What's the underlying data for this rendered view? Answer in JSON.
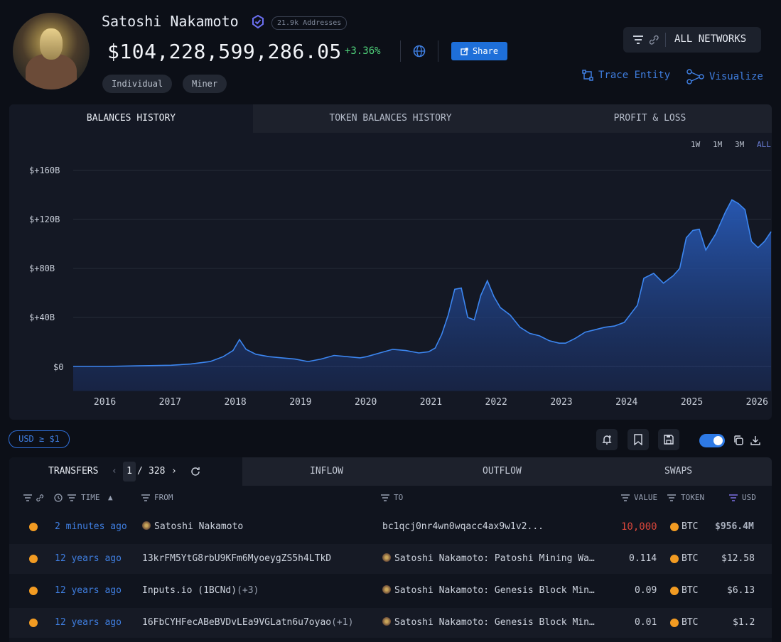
{
  "profile": {
    "name": "Satoshi Nakamoto",
    "addresses_badge": "21.9k Addresses",
    "balance": "$104,228,599,286.05",
    "change": "+3.36%",
    "share_label": "Share",
    "tags": [
      "Individual",
      "Miner"
    ]
  },
  "toolbar": {
    "networks_label": "ALL NETWORKS",
    "trace_label": "Trace Entity",
    "visualize_label": "Visualize"
  },
  "chart_tabs": [
    "BALANCES HISTORY",
    "TOKEN BALANCES HISTORY",
    "PROFIT & LOSS"
  ],
  "ranges": [
    "1W",
    "1M",
    "3M",
    "ALL"
  ],
  "colors": {
    "accent": "#1e6fd9",
    "positive": "#4fd17a",
    "negative": "#d9463b",
    "btc": "#f29b22",
    "area": "#2a62c8"
  },
  "chart_data": {
    "type": "area",
    "y_ticks": [
      "$+160B",
      "$+120B",
      "$+80B",
      "$+40B",
      "$0"
    ],
    "x_ticks": [
      "2016",
      "2017",
      "2018",
      "2019",
      "2020",
      "2021",
      "2022",
      "2023",
      "2024",
      "2025",
      "2026"
    ],
    "ylim": [
      -20,
      175
    ],
    "x": [
      2015.5,
      2016,
      2016.5,
      2017,
      2017.3,
      2017.6,
      2017.8,
      2017.95,
      2018.05,
      2018.15,
      2018.3,
      2018.5,
      2018.7,
      2018.9,
      2019.1,
      2019.3,
      2019.5,
      2019.7,
      2019.9,
      2020.0,
      2020.2,
      2020.4,
      2020.6,
      2020.8,
      2020.95,
      2021.05,
      2021.15,
      2021.25,
      2021.35,
      2021.45,
      2021.55,
      2021.65,
      2021.75,
      2021.85,
      2021.95,
      2022.05,
      2022.2,
      2022.35,
      2022.5,
      2022.65,
      2022.8,
      2022.95,
      2023.05,
      2023.2,
      2023.35,
      2023.5,
      2023.65,
      2023.8,
      2023.95,
      2024.05,
      2024.15,
      2024.25,
      2024.4,
      2024.55,
      2024.7,
      2024.8,
      2024.9,
      2025.0,
      2025.1,
      2025.2,
      2025.35,
      2025.5,
      2025.6,
      2025.7,
      2025.8,
      2025.9,
      2026.0,
      2026.1,
      2026.2
    ],
    "y": [
      0,
      0,
      0.5,
      1,
      2,
      4,
      8,
      13,
      22,
      14,
      10,
      8,
      7,
      6,
      4,
      6,
      9,
      8,
      7,
      8,
      11,
      14,
      13,
      11,
      12,
      15,
      26,
      42,
      63,
      64,
      40,
      38,
      58,
      70,
      57,
      48,
      42,
      32,
      27,
      25,
      21,
      19,
      19,
      23,
      28,
      30,
      32,
      33,
      36,
      43,
      50,
      72,
      76,
      68,
      74,
      80,
      105,
      111,
      112,
      95,
      108,
      126,
      136,
      133,
      128,
      102,
      97,
      102,
      110
    ]
  },
  "controls": {
    "usd_filter": "USD ≥ $1"
  },
  "transfers": {
    "tabs": [
      "TRANSFERS",
      "INFLOW",
      "OUTFLOW",
      "SWAPS"
    ],
    "page": "1",
    "total_pages": "328",
    "headers": {
      "time": "TIME",
      "from": "FROM",
      "to": "TO",
      "value": "VALUE",
      "token": "TOKEN",
      "usd": "USD"
    },
    "rows": [
      {
        "time": "2 minutes ago",
        "from": "Satoshi Nakamoto",
        "to": "bc1qcj0nr4wn0wqacc4ax9w1v2...",
        "value": "10,000",
        "token": "BTC",
        "usd": "$956.4M"
      },
      {
        "time": "12 years ago",
        "from": "13krFM5YtG8rbU9KFm6MyoeygZS5h4LTkD",
        "to": "Satoshi Nakamoto: Patoshi Mining Wa…",
        "value": "0.114",
        "token": "BTC",
        "usd": "$12.58"
      },
      {
        "time": "12 years ago",
        "from": "Inputs.io (1BCNd)",
        "from_extra": "(+3)",
        "to": "Satoshi Nakamoto: Genesis Block Min…",
        "value": "0.09",
        "token": "BTC",
        "usd": "$6.13"
      },
      {
        "time": "12 years ago",
        "from": "16FbCYHFecABeBVDvLEa9VGLatn6u7oyao",
        "from_extra": "(+1)",
        "to": "Satoshi Nakamoto: Genesis Block Min…",
        "value": "0.01",
        "token": "BTC",
        "usd": "$1.2"
      }
    ]
  }
}
